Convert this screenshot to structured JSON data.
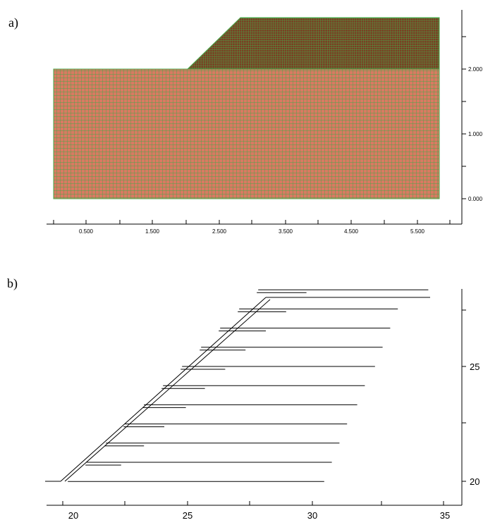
{
  "panels": [
    {
      "label": "a)",
      "x_ticks": [
        "0.500",
        "1.500",
        "2.500",
        "3.500",
        "4.500",
        "5.500"
      ],
      "y_ticks": [
        "2.000",
        "1.000",
        "0.000"
      ],
      "mesh_colors": {
        "fill": "#d97a62",
        "grid": "#4aa84a",
        "dense_fill": "#8a4a2a"
      }
    },
    {
      "label": "b)",
      "x_ticks": [
        "20",
        "25",
        "30",
        "35"
      ],
      "y_ticks": [
        "25",
        "20"
      ],
      "colors": {
        "line": "#000000"
      }
    }
  ],
  "chart_data": [
    {
      "type": "diagram",
      "description_source": "panel a (finite element mesh of slope)",
      "x_ticks": [
        0.5,
        1.5,
        2.5,
        3.5,
        4.5,
        5.5
      ],
      "y_ticks": [
        0.0,
        1.0,
        2.0
      ],
      "base_block": {
        "x": [
          0.0,
          5.8
        ],
        "y": [
          0.0,
          2.0
        ]
      },
      "embankment": {
        "toe_x": 2.0,
        "crest_x": 2.8,
        "right_x": 5.8,
        "y": [
          2.0,
          2.8
        ]
      },
      "grid": true
    },
    {
      "type": "diagram",
      "description_source": "panel b (reinforcement layout)",
      "x_ticks": [
        20,
        25,
        30,
        35
      ],
      "y_ticks": [
        20,
        25
      ],
      "xlim": [
        19.5,
        36
      ],
      "ylim": [
        19.6,
        28.8
      ],
      "layers": [
        {
          "y": 20.2,
          "face_x": 20.2,
          "long_end": 30.3,
          "short_end": null
        },
        {
          "y": 21.0,
          "face_x": 20.95,
          "long_end": 30.6,
          "short_end": 22.3
        },
        {
          "y": 21.8,
          "face_x": 21.7,
          "long_end": 30.9,
          "short_end": 23.2
        },
        {
          "y": 22.6,
          "face_x": 22.45,
          "long_end": 31.2,
          "short_end": 24.0
        },
        {
          "y": 23.4,
          "face_x": 23.2,
          "long_end": 31.6,
          "short_end": 24.85
        },
        {
          "y": 24.2,
          "face_x": 23.95,
          "long_end": 31.9,
          "short_end": 25.6
        },
        {
          "y": 25.0,
          "face_x": 24.7,
          "long_end": 32.3,
          "short_end": 26.4
        },
        {
          "y": 25.8,
          "face_x": 25.45,
          "long_end": 32.6,
          "short_end": 27.2
        },
        {
          "y": 26.6,
          "face_x": 26.2,
          "long_end": 32.9,
          "short_end": 28.0
        },
        {
          "y": 27.4,
          "face_x": 26.95,
          "long_end": 33.2,
          "short_end": 28.8
        },
        {
          "y": 28.2,
          "face_x": 27.7,
          "long_end": 34.4,
          "short_end": 29.6
        }
      ]
    }
  ]
}
